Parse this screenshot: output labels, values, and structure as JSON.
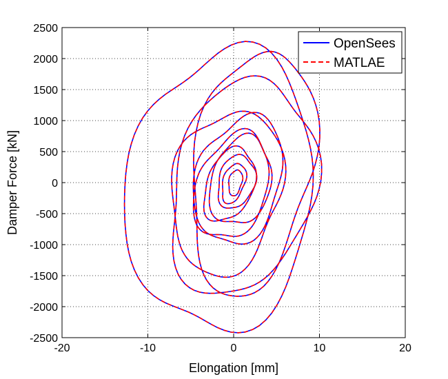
{
  "chart_data": {
    "type": "line",
    "title": "",
    "xlabel": "Elongation [mm]",
    "ylabel": "Damper Force [kN]",
    "xlim": [
      -20,
      20
    ],
    "ylim": [
      -2500,
      2500
    ],
    "xticks": [
      -20,
      -10,
      0,
      10,
      20
    ],
    "xtick_labels": [
      "-20",
      "-10",
      "0",
      "10",
      "20"
    ],
    "yticks": [
      -2500,
      -2000,
      -1500,
      -1000,
      -500,
      0,
      500,
      1000,
      1500,
      2000,
      2500
    ],
    "ytick_labels": [
      "-2500",
      "-2000",
      "-1500",
      "-1000",
      "-500",
      "0",
      "500",
      "1000",
      "1500",
      "2000",
      "2500"
    ],
    "grid": true,
    "legend_position": "top-right",
    "series": [
      {
        "name": "OpenSees",
        "color": "#0000ff",
        "linestyle": "solid",
        "loops": [
          {
            "cx": -1.5,
            "cy": -120,
            "rx": 11.0,
            "ry": 2240,
            "tilt": 0.1,
            "n": 1.0
          },
          {
            "cx": 1.0,
            "cy": -80,
            "rx": 8.5,
            "ry": 1700,
            "tilt": 0.22,
            "n": 1.0
          },
          {
            "cx": 2.2,
            "cy": 180,
            "rx": 7.2,
            "ry": 1900,
            "tilt": 0.28,
            "n": 1.0
          },
          {
            "cx": -0.8,
            "cy": -150,
            "rx": 6.5,
            "ry": 1300,
            "tilt": 0.18,
            "n": 1.0
          },
          {
            "cx": 0.6,
            "cy": 40,
            "rx": 5.2,
            "ry": 1000,
            "tilt": 0.25,
            "n": 1.0
          },
          {
            "cx": -0.2,
            "cy": -60,
            "rx": 4.4,
            "ry": 820,
            "tilt": 0.3,
            "n": 1.0
          },
          {
            "cx": 0.8,
            "cy": 20,
            "rx": 3.6,
            "ry": 700,
            "tilt": 0.2,
            "n": 1.0
          },
          {
            "cx": -0.5,
            "cy": -40,
            "rx": 3.0,
            "ry": 560,
            "tilt": 0.35,
            "n": 1.0
          },
          {
            "cx": 0.3,
            "cy": 10,
            "rx": 2.2,
            "ry": 420,
            "tilt": 0.22,
            "n": 1.0
          },
          {
            "cx": 0.0,
            "cy": -10,
            "rx": 1.4,
            "ry": 300,
            "tilt": 0.4,
            "n": 1.0
          },
          {
            "cx": 0.2,
            "cy": 0,
            "rx": 0.8,
            "ry": 200,
            "tilt": 0.3,
            "n": 1.0
          }
        ]
      },
      {
        "name": "MATLAE",
        "color": "#ff0000",
        "linestyle": "dashed",
        "loops": "same-as-OpenSees"
      }
    ]
  }
}
